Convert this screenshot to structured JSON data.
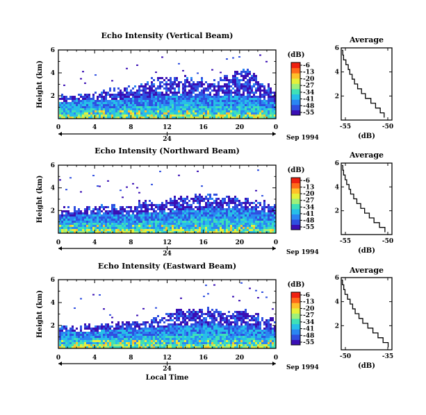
{
  "figure": {
    "bottom_label": "Local Time"
  },
  "shared": {
    "time_ticks": [
      "0",
      "4",
      "8",
      "12",
      "16",
      "20",
      "0"
    ],
    "day_label": "24",
    "month_label": "Sep 1994",
    "height_ylabel": "Height (km)",
    "height_ticks": [
      "2",
      "4",
      "6"
    ],
    "colorbar_unit": "(dB)",
    "colorbar_ticks": [
      "-6",
      "-13",
      "-20",
      "-27",
      "-34",
      "-41",
      "-48",
      "-55"
    ],
    "colorbar_colors": [
      "#3a0fb4",
      "#2f4fe0",
      "#2a86f2",
      "#27bfe8",
      "#3fe0b8",
      "#9ff07a",
      "#e7f03a",
      "#ffc02a",
      "#ff6a1a",
      "#ee2010"
    ],
    "avg_title": "Average",
    "avg_xlabel": "(dB)"
  },
  "chart_data": [
    {
      "type": "heatmap",
      "title": "Echo Intensity (Vertical Beam)",
      "xlabel": "Local Time",
      "ylabel": "Height (km)",
      "xlim": [
        0,
        24
      ],
      "ylim": [
        0,
        6
      ],
      "zunit": "dB",
      "zlim": [
        -55,
        -6
      ],
      "profile": [
        {
          "top": 2.0,
          "base": 1.6
        },
        {
          "top": 2.3,
          "base": 1.7
        },
        {
          "top": 2.7,
          "base": 1.8
        },
        {
          "top": 3.5,
          "base": 2.0
        },
        {
          "top": 3.6,
          "base": 2.2
        },
        {
          "top": 3.4,
          "base": 2.0
        },
        {
          "top": 4.4,
          "base": 2.1
        },
        {
          "top": 2.4,
          "base": 1.5
        }
      ]
    },
    {
      "type": "line",
      "title": "Average",
      "xlabel": "(dB)",
      "xticks": [
        "-55",
        "-50"
      ],
      "xlim": [
        -56,
        -49.5
      ],
      "ylim": [
        0,
        6
      ],
      "y": [
        0.2,
        0.6,
        1.0,
        1.4,
        1.8,
        2.2,
        2.6,
        3.0,
        3.4,
        3.8,
        4.2,
        4.6,
        5.0,
        5.4,
        5.8
      ],
      "x": [
        -50.5,
        -51.0,
        -51.6,
        -52.2,
        -52.9,
        -53.4,
        -53.9,
        -54.3,
        -54.6,
        -54.9,
        -55.1,
        -55.4,
        -55.7,
        -55.8,
        -55.9
      ]
    },
    {
      "type": "heatmap",
      "title": "Echo Intensity (Northward Beam)",
      "xlabel": "Local Time",
      "ylabel": "Height (km)",
      "xlim": [
        0,
        24
      ],
      "ylim": [
        0,
        6
      ],
      "zunit": "dB",
      "zlim": [
        -55,
        -6
      ],
      "profile": [
        {
          "top": 2.2,
          "base": 1.6
        },
        {
          "top": 2.4,
          "base": 1.7
        },
        {
          "top": 2.5,
          "base": 1.7
        },
        {
          "top": 2.9,
          "base": 1.9
        },
        {
          "top": 3.3,
          "base": 2.1
        },
        {
          "top": 3.5,
          "base": 2.3
        },
        {
          "top": 3.1,
          "base": 2.2
        },
        {
          "top": 2.5,
          "base": 1.8
        }
      ]
    },
    {
      "type": "line",
      "title": "Average",
      "xlabel": "(dB)",
      "xticks": [
        "-55",
        "-50"
      ],
      "xlim": [
        -56,
        -49.5
      ],
      "ylim": [
        0,
        6
      ],
      "y": [
        0.2,
        0.6,
        1.0,
        1.4,
        1.8,
        2.2,
        2.6,
        3.0,
        3.4,
        3.8,
        4.2,
        4.6,
        5.0,
        5.4,
        5.8
      ],
      "x": [
        -50.4,
        -51.1,
        -51.8,
        -52.4,
        -53.0,
        -53.5,
        -54.0,
        -54.4,
        -54.8,
        -55.0,
        -55.3,
        -55.5,
        -55.7,
        -55.8,
        -55.9
      ]
    },
    {
      "type": "heatmap",
      "title": "Echo Intensity (Eastward Beam)",
      "xlabel": "Local Time",
      "ylabel": "Height (km)",
      "xlim": [
        0,
        24
      ],
      "ylim": [
        0,
        6
      ],
      "zunit": "dB",
      "zlim": [
        -55,
        -6
      ],
      "profile": [
        {
          "top": 1.9,
          "base": 1.5
        },
        {
          "top": 2.1,
          "base": 1.6
        },
        {
          "top": 2.3,
          "base": 1.7
        },
        {
          "top": 2.6,
          "base": 1.9
        },
        {
          "top": 3.6,
          "base": 2.1
        },
        {
          "top": 3.4,
          "base": 2.2
        },
        {
          "top": 3.3,
          "base": 2.0
        },
        {
          "top": 2.5,
          "base": 1.6
        }
      ]
    },
    {
      "type": "line",
      "title": "Average",
      "xlabel": "(dB)",
      "xticks": [
        "-50",
        "-35"
      ],
      "xlim": [
        -53,
        -33
      ],
      "ylim": [
        0,
        6
      ],
      "y": [
        0.2,
        0.6,
        1.0,
        1.4,
        1.8,
        2.2,
        2.6,
        3.0,
        3.4,
        3.8,
        4.2,
        4.6,
        5.0,
        5.4,
        5.8
      ],
      "x": [
        -34.5,
        -36.5,
        -38.5,
        -40.5,
        -42.5,
        -44.5,
        -46.0,
        -47.5,
        -48.5,
        -49.5,
        -50.5,
        -51.5,
        -52.0,
        -52.5,
        -52.8
      ]
    }
  ]
}
